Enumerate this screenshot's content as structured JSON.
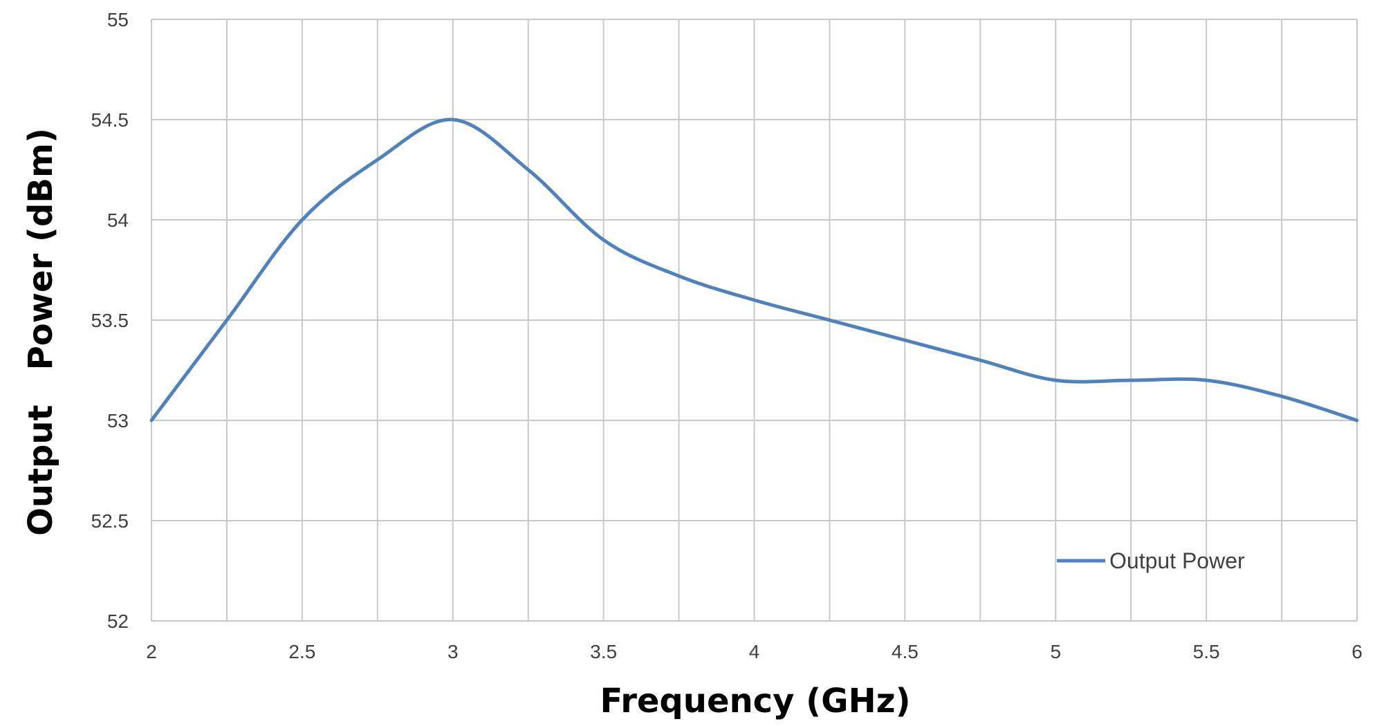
{
  "chart_data": {
    "type": "line",
    "title": "",
    "xlabel": "Frequency (GHz)",
    "ylabel": "Output   Power (dBm)",
    "xlim": [
      2,
      6
    ],
    "ylim": [
      52,
      55
    ],
    "x_ticks": [
      "2",
      "2.5",
      "3",
      "3.5",
      "4",
      "4.5",
      "5",
      "5.5",
      "6"
    ],
    "y_ticks": [
      "52",
      "52.5",
      "53",
      "53.5",
      "54",
      "54.5",
      "55"
    ],
    "grid": true,
    "legend_position": "bottom-right",
    "series": [
      {
        "name": "Output Power",
        "color": "#4f81bd",
        "x": [
          2,
          2.25,
          2.5,
          2.75,
          3,
          3.25,
          3.5,
          3.75,
          4,
          4.25,
          4.5,
          4.75,
          5,
          5.25,
          5.5,
          5.75,
          6
        ],
        "y": [
          53.0,
          53.5,
          54.0,
          54.3,
          54.5,
          54.25,
          53.9,
          53.72,
          53.6,
          53.5,
          53.4,
          53.3,
          53.2,
          53.2,
          53.2,
          53.12,
          53.0
        ]
      }
    ]
  }
}
